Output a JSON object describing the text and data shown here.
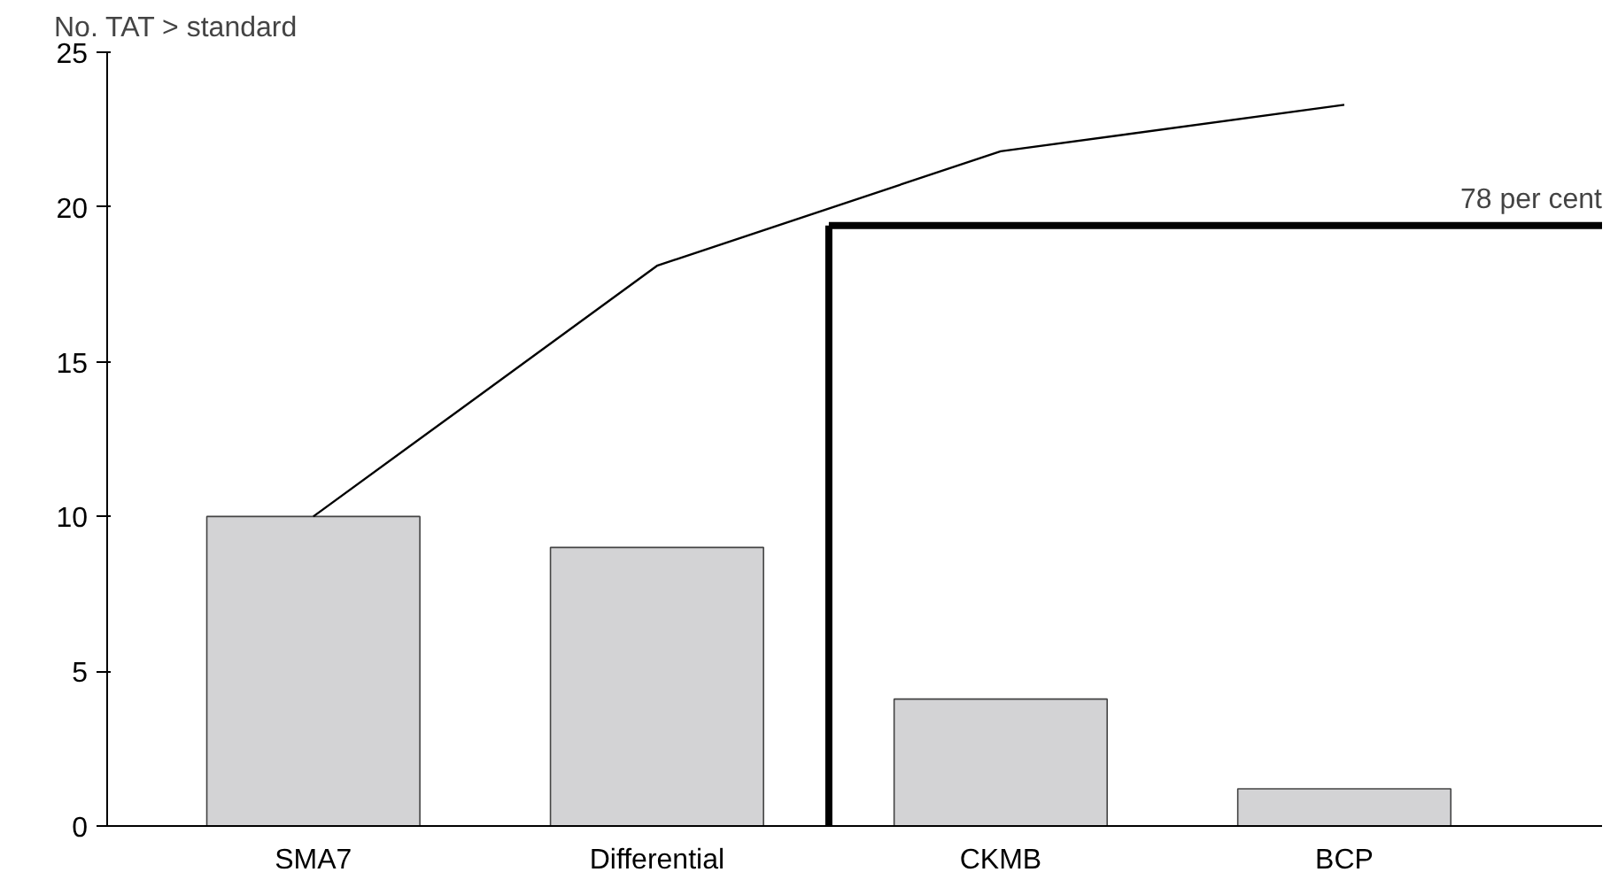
{
  "chart_data": {
    "type": "bar",
    "ylabel": "No. TAT > standard",
    "categories": [
      "SMA7",
      "Differential",
      "CKMB",
      "BCP"
    ],
    "series": [
      {
        "color": "#d3d3d5",
        "values": [
          10,
          9,
          4.1,
          1.2
        ]
      },
      {
        "type": "line",
        "color": "#000000",
        "values": [
          10,
          18.1,
          21.8,
          23.3
        ]
      }
    ],
    "ylim": [
      0,
      25
    ],
    "yticks": [
      0,
      5,
      10,
      15,
      20,
      25
    ],
    "grid": false,
    "ref_lines": [
      {
        "axis": "y",
        "value": 19.4,
        "label": "78 per cent",
        "color": "#000000"
      }
    ]
  }
}
